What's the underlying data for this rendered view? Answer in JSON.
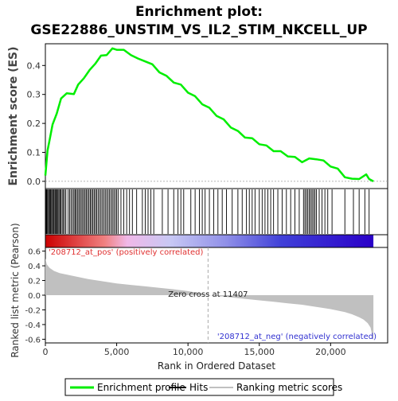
{
  "chart_data": {
    "type": "line",
    "title": "Enrichment plot:",
    "subtitle": "GSE22886_UNSTIM_VS_IL2_STIM_NKCELL_UP",
    "xlabel": "Rank in Ordered Dataset",
    "x_ticks": [
      "0",
      "5,000",
      "10,000",
      "15,000",
      "20,000"
    ],
    "xlim": [
      0,
      24000
    ],
    "n_genes": 23000,
    "es_panel": {
      "ylabel": "Enrichment score (ES)",
      "ylim": [
        -0.025,
        0.475
      ],
      "y_ticks": [
        "0.0",
        "0.1",
        "0.2",
        "0.3",
        "0.4"
      ],
      "series": [
        {
          "name": "Enrichment profile",
          "color": "#00ee00",
          "x": [
            0,
            150,
            300,
            500,
            800,
            1100,
            1500,
            2000,
            2300,
            2700,
            3100,
            3500,
            3900,
            4300,
            4700,
            5000,
            5500,
            6000,
            6500,
            7000,
            7500,
            8000,
            8500,
            9000,
            9500,
            10000,
            10500,
            11000,
            11500,
            12000,
            12500,
            13000,
            13500,
            14000,
            14500,
            15000,
            15500,
            16000,
            16500,
            17000,
            17500,
            18000,
            18500,
            19000,
            19500,
            20000,
            20500,
            21000,
            21500,
            22000,
            22500,
            22700,
            23000
          ],
          "values": [
            0.02,
            0.11,
            0.14,
            0.2,
            0.23,
            0.29,
            0.3,
            0.305,
            0.33,
            0.36,
            0.38,
            0.41,
            0.43,
            0.44,
            0.455,
            0.458,
            0.45,
            0.44,
            0.42,
            0.418,
            0.4,
            0.38,
            0.36,
            0.345,
            0.33,
            0.31,
            0.29,
            0.27,
            0.25,
            0.23,
            0.21,
            0.19,
            0.17,
            0.155,
            0.145,
            0.132,
            0.12,
            0.108,
            0.1,
            0.09,
            0.08,
            0.07,
            0.075,
            0.08,
            0.068,
            0.055,
            0.04,
            0.018,
            0.005,
            0.012,
            0.02,
            0.012,
            0.0
          ]
        }
      ]
    },
    "hits_panel": {
      "hit_ranks": [
        20,
        60,
        110,
        170,
        240,
        300,
        360,
        430,
        500,
        560,
        620,
        690,
        760,
        820,
        880,
        950,
        1020,
        1090,
        1180,
        1260,
        1350,
        1440,
        1600,
        1700,
        1800,
        1900,
        2000,
        2080,
        2160,
        2250,
        2340,
        2430,
        2520,
        2610,
        2700,
        2790,
        2880,
        2970,
        3060,
        3150,
        3240,
        3330,
        3420,
        3510,
        3600,
        3700,
        3800,
        3900,
        4000,
        4100,
        4200,
        4300,
        4400,
        4500,
        4600,
        4700,
        4800,
        4900,
        5000,
        5100,
        5300,
        5500,
        5700,
        5900,
        6100,
        6400,
        6800,
        7000,
        7200,
        7400,
        7600,
        8200,
        8600,
        9000,
        9300,
        9500,
        9700,
        10200,
        10500,
        10800,
        11000,
        11200,
        11500,
        11800,
        12100,
        12400,
        12700,
        13100,
        13500,
        13800,
        14100,
        14300,
        14500,
        14700,
        15000,
        15200,
        15400,
        15600,
        15800,
        16000,
        16300,
        16600,
        16900,
        17200,
        17500,
        17800,
        18100,
        18200,
        18300,
        18400,
        18500,
        18600,
        18700,
        18800,
        18900,
        19000,
        19200,
        19400,
        19600,
        19800,
        20100,
        21000,
        21600,
        22000,
        22400,
        22700
      ]
    },
    "bar_panel": {
      "gradient": [
        "#cc0000",
        "#f08080",
        "#f0b8e8",
        "#c8c8f4",
        "#9090e8",
        "#4040d8",
        "#2a00c8"
      ]
    },
    "metric_panel": {
      "ylabel": "Ranked list metric (Pearson)",
      "ylim": [
        -0.65,
        0.65
      ],
      "y_ticks": [
        "-0.6",
        "-0.4",
        "-0.2",
        "0.0",
        "0.2",
        "0.4",
        "0.6"
      ],
      "fill_color": "#c0c0c0",
      "x": [
        0,
        100,
        300,
        600,
        1000,
        2000,
        3000,
        4000,
        5000,
        6000,
        7000,
        8000,
        9000,
        10000,
        11000,
        11407,
        12000,
        13000,
        14000,
        15000,
        16000,
        17000,
        18000,
        19000,
        20000,
        21000,
        21500,
        22000,
        22300,
        22600,
        22800,
        23000
      ],
      "values": [
        0.5,
        0.42,
        0.37,
        0.33,
        0.3,
        0.26,
        0.22,
        0.19,
        0.16,
        0.14,
        0.12,
        0.1,
        0.08,
        0.055,
        0.02,
        0.0,
        -0.01,
        -0.03,
        -0.05,
        -0.07,
        -0.09,
        -0.11,
        -0.13,
        -0.16,
        -0.19,
        -0.23,
        -0.26,
        -0.3,
        -0.33,
        -0.38,
        -0.44,
        -0.62
      ],
      "zero_cross_label": "Zero cross at 11407",
      "zero_cross": 11407,
      "pos_label": "'208712_at_pos' (positively correlated)",
      "neg_label": "'208712_at_neg' (negatively correlated)",
      "pos_color": "#e03030",
      "neg_color": "#3030d0"
    },
    "legend": {
      "placement": "bottom",
      "items": [
        {
          "label": "Enrichment profile",
          "color": "#00ee00"
        },
        {
          "label": "Hits",
          "color": "#000000"
        },
        {
          "label": "Ranking metric scores",
          "color": "#c0c0c0"
        }
      ]
    }
  }
}
